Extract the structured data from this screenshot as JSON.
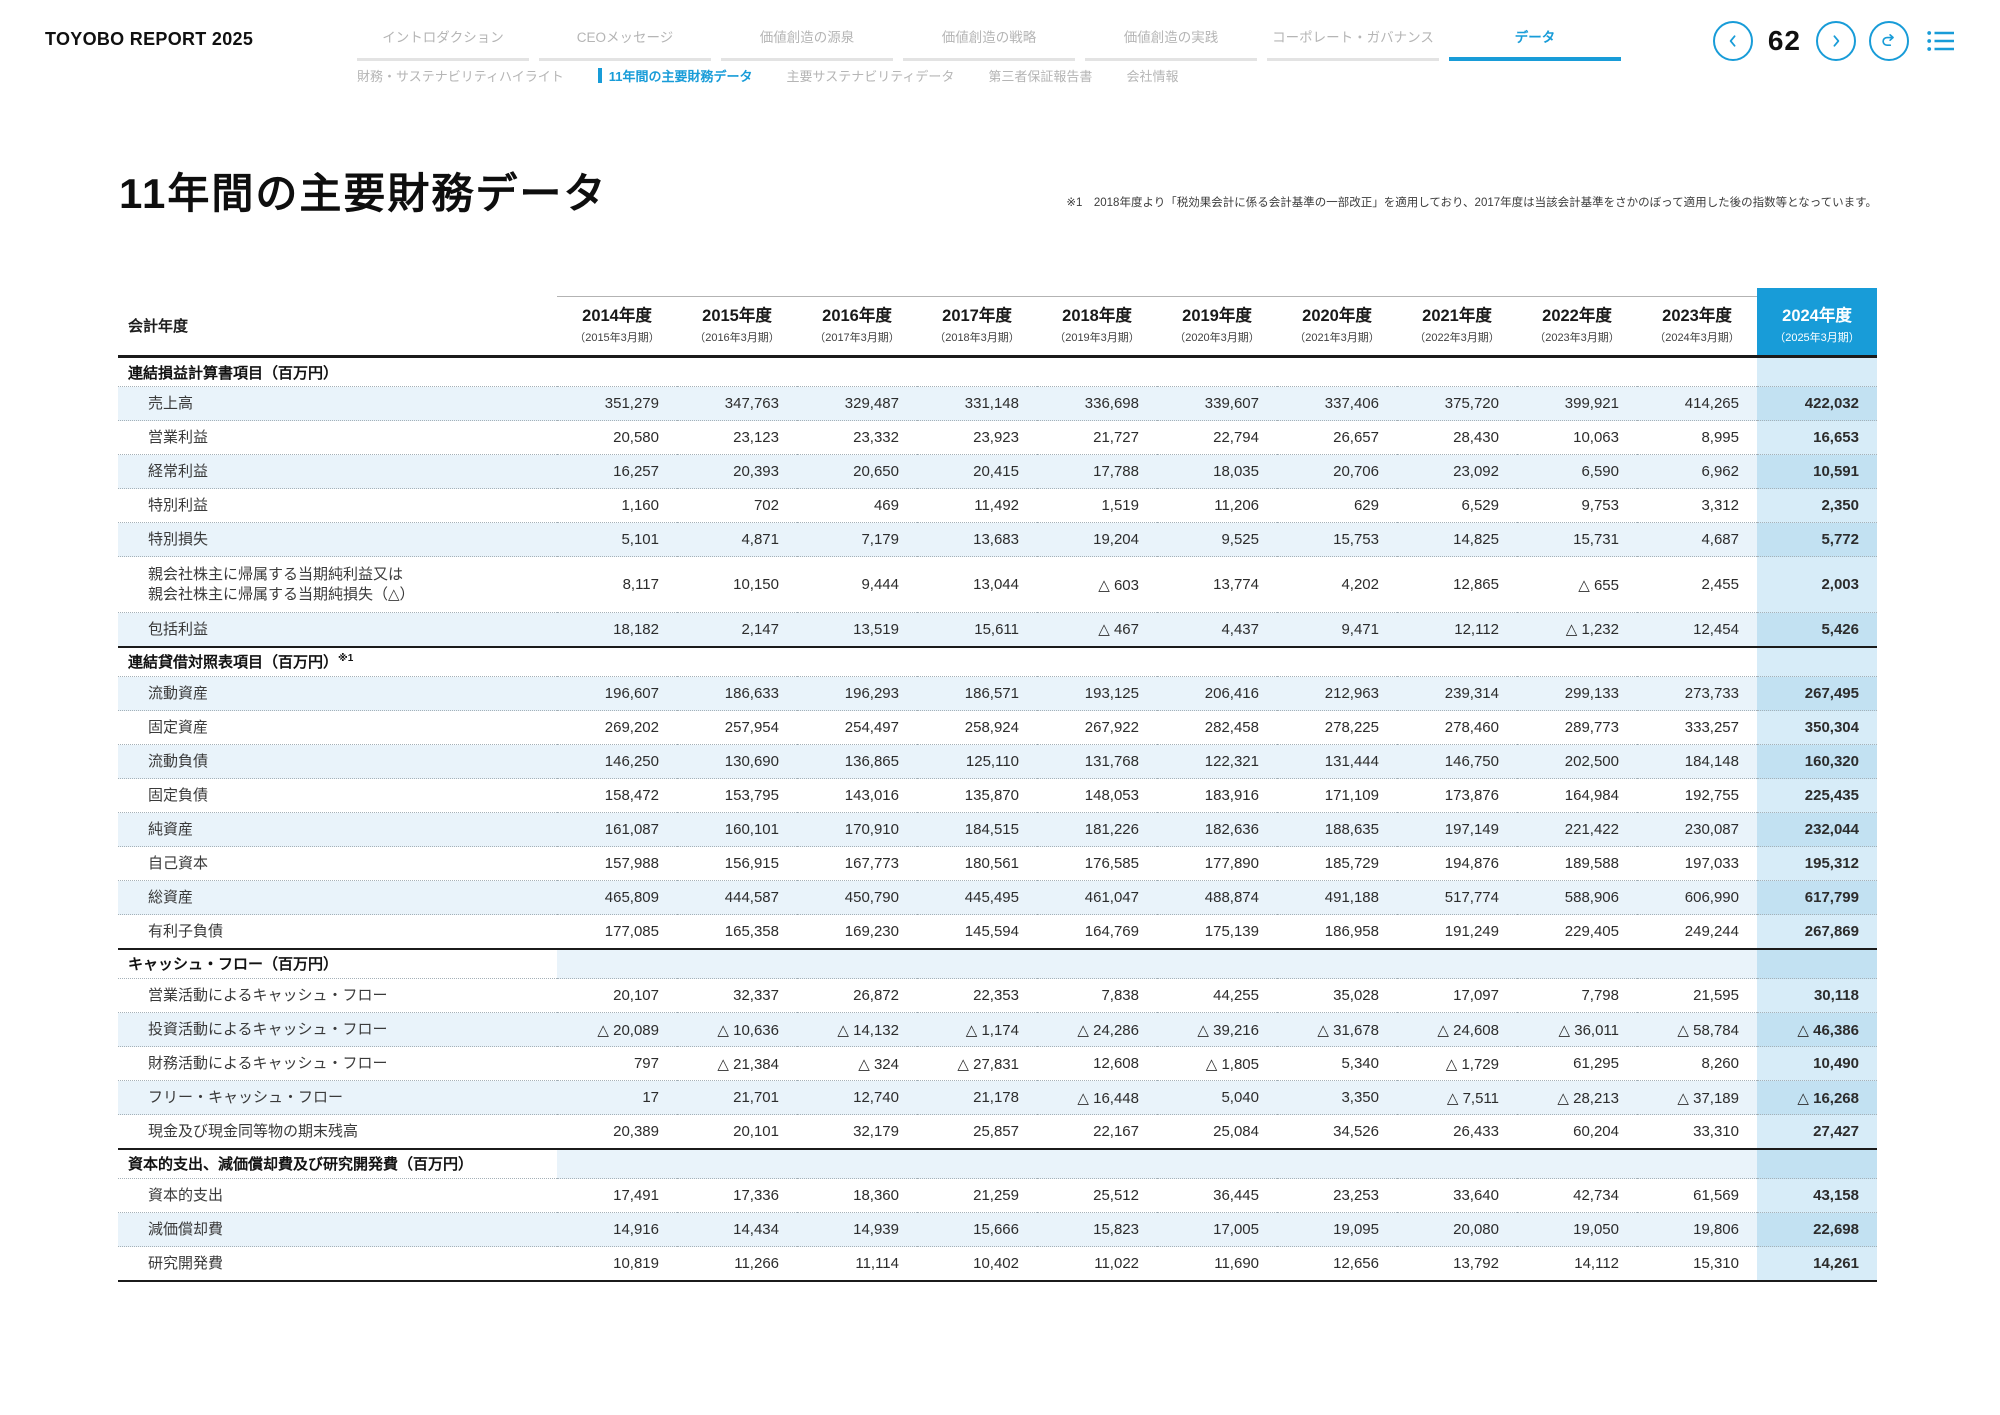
{
  "colors": {
    "accent": "#189cd8",
    "row_stripe": "#e9f3fa",
    "current_col_light": "#d7ecf8",
    "current_col_dark": "#c2e1f2"
  },
  "header": {
    "logo": "TOYOBO REPORT 2025",
    "page_number": "62",
    "nav_tabs": [
      {
        "label": "イントロダクション",
        "active": false
      },
      {
        "label": "CEOメッセージ",
        "active": false
      },
      {
        "label": "価値創造の源泉",
        "active": false
      },
      {
        "label": "価値創造の戦略",
        "active": false
      },
      {
        "label": "価値創造の実践",
        "active": false
      },
      {
        "label": "コーポレート・ガバナンス",
        "active": false
      },
      {
        "label": "データ",
        "active": true
      }
    ],
    "sub_tabs": [
      {
        "label": "財務・サステナビリティハイライト",
        "active": false
      },
      {
        "label": "11年間の主要財務データ",
        "active": true
      },
      {
        "label": "主要サステナビリティデータ",
        "active": false
      },
      {
        "label": "第三者保証報告書",
        "active": false
      },
      {
        "label": "会社情報",
        "active": false
      }
    ],
    "pager_icons": {
      "prev": "chevron-left-icon",
      "next": "chevron-right-icon",
      "back": "return-arrow-icon",
      "toc": "list-icon"
    }
  },
  "page": {
    "title": "11年間の主要財務データ",
    "footnote": "※1　2018年度より「税効果会計に係る会計基準の一部改正」を適用しており、2017年度は当該会計基準をさかのぼって適用した後の指数等となっています。"
  },
  "table": {
    "corner_label": "会計年度",
    "years": [
      {
        "year": "2014年度",
        "period": "（2015年3月期）"
      },
      {
        "year": "2015年度",
        "period": "（2016年3月期）"
      },
      {
        "year": "2016年度",
        "period": "（2017年3月期）"
      },
      {
        "year": "2017年度",
        "period": "（2018年3月期）"
      },
      {
        "year": "2018年度",
        "period": "（2019年3月期）"
      },
      {
        "year": "2019年度",
        "period": "（2020年3月期）"
      },
      {
        "year": "2020年度",
        "period": "（2021年3月期）"
      },
      {
        "year": "2021年度",
        "period": "（2022年3月期）"
      },
      {
        "year": "2022年度",
        "period": "（2023年3月期）"
      },
      {
        "year": "2023年度",
        "period": "（2024年3月期）"
      },
      {
        "year": "2024年度",
        "period": "（2025年3月期）",
        "current": true
      }
    ],
    "sections": [
      {
        "title": "連結損益計算書項目（百万円）",
        "title_sup": "",
        "rows": [
          {
            "label": "売上高",
            "values": [
              "351,279",
              "347,763",
              "329,487",
              "331,148",
              "336,698",
              "339,607",
              "337,406",
              "375,720",
              "399,921",
              "414,265",
              "422,032"
            ]
          },
          {
            "label": "営業利益",
            "values": [
              "20,580",
              "23,123",
              "23,332",
              "23,923",
              "21,727",
              "22,794",
              "26,657",
              "28,430",
              "10,063",
              "8,995",
              "16,653"
            ]
          },
          {
            "label": "経常利益",
            "values": [
              "16,257",
              "20,393",
              "20,650",
              "20,415",
              "17,788",
              "18,035",
              "20,706",
              "23,092",
              "6,590",
              "6,962",
              "10,591"
            ]
          },
          {
            "label": "特別利益",
            "values": [
              "1,160",
              "702",
              "469",
              "11,492",
              "1,519",
              "11,206",
              "629",
              "6,529",
              "9,753",
              "3,312",
              "2,350"
            ]
          },
          {
            "label": "特別損失",
            "values": [
              "5,101",
              "4,871",
              "7,179",
              "13,683",
              "19,204",
              "9,525",
              "15,753",
              "14,825",
              "15,731",
              "4,687",
              "5,772"
            ]
          },
          {
            "label": "親会社株主に帰属する当期純利益又は",
            "label2": "親会社株主に帰属する当期純損失（△）",
            "values": [
              "8,117",
              "10,150",
              "9,444",
              "13,044",
              "△ 603",
              "13,774",
              "4,202",
              "12,865",
              "△ 655",
              "2,455",
              "2,003"
            ]
          },
          {
            "label": "包括利益",
            "values": [
              "18,182",
              "2,147",
              "13,519",
              "15,611",
              "△ 467",
              "4,437",
              "9,471",
              "12,112",
              "△ 1,232",
              "12,454",
              "5,426"
            ]
          }
        ]
      },
      {
        "title": "連結貸借対照表項目（百万円）",
        "title_sup": "※1",
        "rows": [
          {
            "label": "流動資産",
            "values": [
              "196,607",
              "186,633",
              "196,293",
              "186,571",
              "193,125",
              "206,416",
              "212,963",
              "239,314",
              "299,133",
              "273,733",
              "267,495"
            ]
          },
          {
            "label": "固定資産",
            "values": [
              "269,202",
              "257,954",
              "254,497",
              "258,924",
              "267,922",
              "282,458",
              "278,225",
              "278,460",
              "289,773",
              "333,257",
              "350,304"
            ]
          },
          {
            "label": "流動負債",
            "values": [
              "146,250",
              "130,690",
              "136,865",
              "125,110",
              "131,768",
              "122,321",
              "131,444",
              "146,750",
              "202,500",
              "184,148",
              "160,320"
            ]
          },
          {
            "label": "固定負債",
            "values": [
              "158,472",
              "153,795",
              "143,016",
              "135,870",
              "148,053",
              "183,916",
              "171,109",
              "173,876",
              "164,984",
              "192,755",
              "225,435"
            ]
          },
          {
            "label": "純資産",
            "values": [
              "161,087",
              "160,101",
              "170,910",
              "184,515",
              "181,226",
              "182,636",
              "188,635",
              "197,149",
              "221,422",
              "230,087",
              "232,044"
            ]
          },
          {
            "label": "自己資本",
            "values": [
              "157,988",
              "156,915",
              "167,773",
              "180,561",
              "176,585",
              "177,890",
              "185,729",
              "194,876",
              "189,588",
              "197,033",
              "195,312"
            ]
          },
          {
            "label": "総資産",
            "values": [
              "465,809",
              "444,587",
              "450,790",
              "445,495",
              "461,047",
              "488,874",
              "491,188",
              "517,774",
              "588,906",
              "606,990",
              "617,799"
            ]
          },
          {
            "label": "有利子負債",
            "values": [
              "177,085",
              "165,358",
              "169,230",
              "145,594",
              "164,769",
              "175,139",
              "186,958",
              "191,249",
              "229,405",
              "249,244",
              "267,869"
            ]
          }
        ]
      },
      {
        "title": "キャッシュ・フロー（百万円）",
        "title_sup": "",
        "rows": [
          {
            "label": "営業活動によるキャッシュ・フロー",
            "values": [
              "20,107",
              "32,337",
              "26,872",
              "22,353",
              "7,838",
              "44,255",
              "35,028",
              "17,097",
              "7,798",
              "21,595",
              "30,118"
            ]
          },
          {
            "label": "投資活動によるキャッシュ・フロー",
            "values": [
              "△ 20,089",
              "△ 10,636",
              "△ 14,132",
              "△ 1,174",
              "△ 24,286",
              "△ 39,216",
              "△ 31,678",
              "△ 24,608",
              "△ 36,011",
              "△ 58,784",
              "△ 46,386"
            ]
          },
          {
            "label": "財務活動によるキャッシュ・フロー",
            "values": [
              "797",
              "△ 21,384",
              "△ 324",
              "△ 27,831",
              "12,608",
              "△ 1,805",
              "5,340",
              "△ 1,729",
              "61,295",
              "8,260",
              "10,490"
            ]
          },
          {
            "label": "フリー・キャッシュ・フロー",
            "values": [
              "17",
              "21,701",
              "12,740",
              "21,178",
              "△ 16,448",
              "5,040",
              "3,350",
              "△ 7,511",
              "△ 28,213",
              "△ 37,189",
              "△ 16,268"
            ]
          },
          {
            "label": "現金及び現金同等物の期末残高",
            "values": [
              "20,389",
              "20,101",
              "32,179",
              "25,857",
              "22,167",
              "25,084",
              "34,526",
              "26,433",
              "60,204",
              "33,310",
              "27,427"
            ]
          }
        ]
      },
      {
        "title": "資本的支出、減価償却費及び研究開発費（百万円）",
        "title_sup": "",
        "rows": [
          {
            "label": "資本的支出",
            "values": [
              "17,491",
              "17,336",
              "18,360",
              "21,259",
              "25,512",
              "36,445",
              "23,253",
              "33,640",
              "42,734",
              "61,569",
              "43,158"
            ]
          },
          {
            "label": "減価償却費",
            "values": [
              "14,916",
              "14,434",
              "14,939",
              "15,666",
              "15,823",
              "17,005",
              "19,095",
              "20,080",
              "19,050",
              "19,806",
              "22,698"
            ]
          },
          {
            "label": "研究開発費",
            "values": [
              "10,819",
              "11,266",
              "11,114",
              "10,402",
              "11,022",
              "11,690",
              "12,656",
              "13,792",
              "14,112",
              "15,310",
              "14,261"
            ]
          }
        ]
      }
    ]
  }
}
